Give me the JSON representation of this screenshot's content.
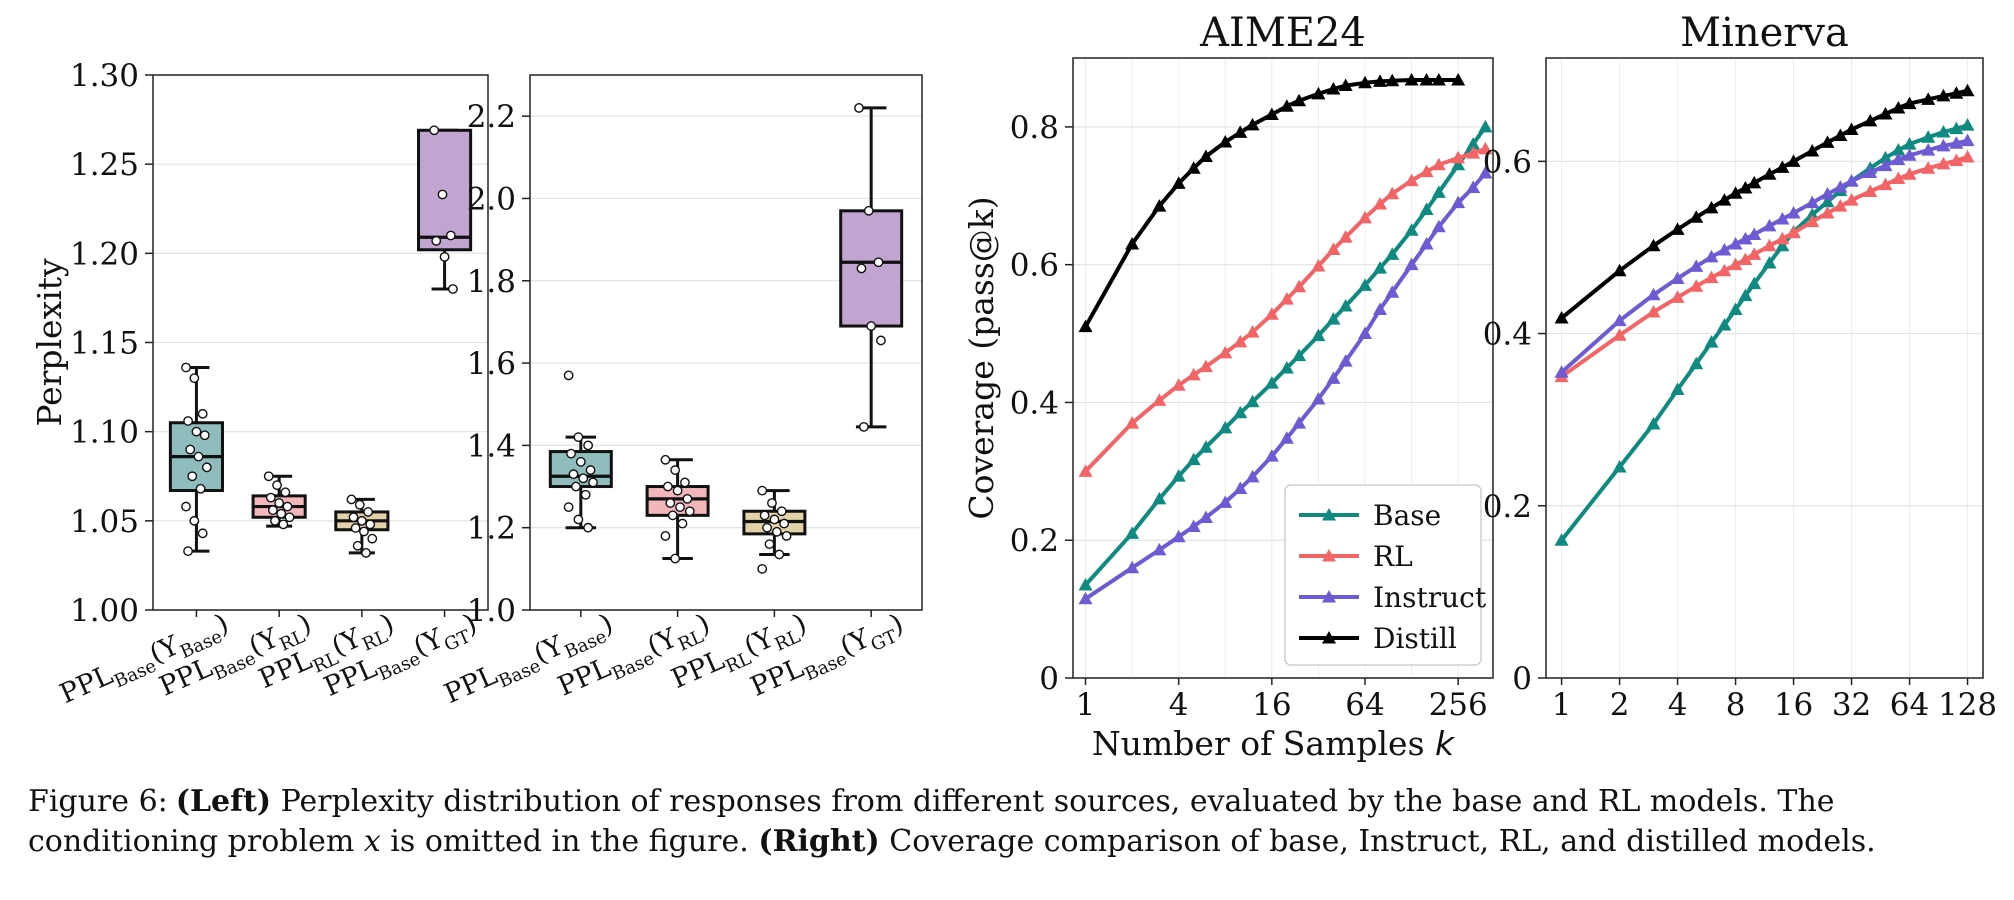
{
  "colors": {
    "base": "#0f8a80",
    "rl": "#f26466",
    "instruct": "#6e5bd3",
    "distill": "#000000",
    "box_base": "#8fbdbd",
    "box_rl": "#f3b7bb",
    "box_rl_rl": "#e3d1a7",
    "box_gt": "#c2a4d1"
  },
  "caption": {
    "label": "Figure 6:",
    "left_tag": "(Left)",
    "left_text": "Perplexity distribution of responses from different sources, evaluated by the base and RL models. The",
    "line2_a": "conditioning problem",
    "var_x": "x",
    "line2_b": "is omitted in the figure.",
    "right_tag": "(Right)",
    "right_text": "Coverage comparison of base, Instruct, RL, and distilled models."
  },
  "chart_data": [
    {
      "type": "box",
      "title": "",
      "xlabel": "",
      "ylabel": "Perplexity",
      "ylim": [
        1.0,
        1.3
      ],
      "yticks": [
        "1.00",
        "1.05",
        "1.10",
        "1.15",
        "1.20",
        "1.25",
        "1.30"
      ],
      "grid": true,
      "boxes": [
        {
          "label": {
            "main": "PPL",
            "sub": "Base",
            "arg": "Y",
            "argsub": "Base"
          },
          "color_key": "box_base",
          "q1": 1.067,
          "median": 1.086,
          "q3": 1.105,
          "whisker_low": 1.033,
          "whisker_high": 1.136,
          "points": [
            1.136,
            1.13,
            1.11,
            1.106,
            1.1,
            1.098,
            1.09,
            1.086,
            1.08,
            1.075,
            1.068,
            1.058,
            1.05,
            1.043,
            1.033
          ]
        },
        {
          "label": {
            "main": "PPL",
            "sub": "Base",
            "arg": "Y",
            "argsub": "RL"
          },
          "color_key": "box_rl",
          "q1": 1.052,
          "median": 1.058,
          "q3": 1.064,
          "whisker_low": 1.047,
          "whisker_high": 1.075,
          "points": [
            1.075,
            1.07,
            1.066,
            1.063,
            1.06,
            1.058,
            1.056,
            1.054,
            1.052,
            1.05,
            1.048
          ]
        },
        {
          "label": {
            "main": "PPL",
            "sub": "RL",
            "arg": "Y",
            "argsub": "RL"
          },
          "color_key": "box_rl_rl",
          "q1": 1.045,
          "median": 1.05,
          "q3": 1.055,
          "whisker_low": 1.032,
          "whisker_high": 1.062,
          "points": [
            1.062,
            1.059,
            1.055,
            1.052,
            1.05,
            1.048,
            1.046,
            1.044,
            1.04,
            1.036,
            1.032
          ]
        },
        {
          "label": {
            "main": "PPL",
            "sub": "Base",
            "arg": "Y",
            "argsub": "GT"
          },
          "color_key": "box_gt",
          "q1": 1.202,
          "median": 1.209,
          "q3": 1.269,
          "whisker_low": 1.18,
          "whisker_high": 1.269,
          "points": [
            1.269,
            1.233,
            1.21,
            1.207,
            1.198,
            1.18
          ]
        }
      ]
    },
    {
      "type": "box",
      "title": "",
      "xlabel": "",
      "ylabel": "",
      "ylim": [
        1.0,
        2.3
      ],
      "yticks": [
        "1.0",
        "1.2",
        "1.4",
        "1.6",
        "1.8",
        "2.0",
        "2.2"
      ],
      "grid": true,
      "boxes": [
        {
          "label": {
            "main": "PPL",
            "sub": "Base",
            "arg": "Y",
            "argsub": "Base"
          },
          "color_key": "box_base",
          "q1": 1.3,
          "median": 1.325,
          "q3": 1.385,
          "whisker_low": 1.2,
          "whisker_high": 1.42,
          "points": [
            1.57,
            1.42,
            1.4,
            1.38,
            1.36,
            1.34,
            1.33,
            1.32,
            1.31,
            1.3,
            1.28,
            1.25,
            1.22,
            1.2
          ]
        },
        {
          "label": {
            "main": "PPL",
            "sub": "Base",
            "arg": "Y",
            "argsub": "RL"
          },
          "color_key": "box_rl",
          "q1": 1.23,
          "median": 1.27,
          "q3": 1.3,
          "whisker_low": 1.125,
          "whisker_high": 1.365,
          "points": [
            1.365,
            1.34,
            1.31,
            1.3,
            1.29,
            1.27,
            1.26,
            1.25,
            1.24,
            1.23,
            1.21,
            1.18,
            1.125
          ]
        },
        {
          "label": {
            "main": "PPL",
            "sub": "RL",
            "arg": "Y",
            "argsub": "RL"
          },
          "color_key": "box_rl_rl",
          "q1": 1.185,
          "median": 1.215,
          "q3": 1.24,
          "whisker_low": 1.135,
          "whisker_high": 1.29,
          "points": [
            1.29,
            1.26,
            1.24,
            1.23,
            1.22,
            1.21,
            1.2,
            1.19,
            1.18,
            1.16,
            1.135,
            1.1
          ]
        },
        {
          "label": {
            "main": "PPL",
            "sub": "Base",
            "arg": "Y",
            "argsub": "GT"
          },
          "color_key": "box_gt",
          "q1": 1.69,
          "median": 1.845,
          "q3": 1.97,
          "whisker_low": 1.445,
          "whisker_high": 2.22,
          "points": [
            2.22,
            1.97,
            1.845,
            1.83,
            1.69,
            1.655,
            1.445
          ]
        }
      ]
    },
    {
      "type": "line",
      "title": "AIME24",
      "xlabel_text": "Number of Samples ",
      "xlabel_var": "k",
      "ylabel": "Coverage (pass@k)",
      "xscale": "log2",
      "xlim": [
        0.83,
        430
      ],
      "ylim": [
        0,
        0.9
      ],
      "xticks": [
        1,
        4,
        16,
        64,
        256
      ],
      "xtick_labels": [
        "1",
        "4",
        "16",
        "64",
        "256"
      ],
      "yticks": [
        0,
        0.2,
        0.4,
        0.6,
        0.8
      ],
      "ytick_labels": [
        "0",
        "0.2",
        "0.4",
        "0.6",
        "0.8"
      ],
      "grid": true,
      "legend": "lower-right",
      "series": [
        {
          "name": "Base",
          "color_key": "base",
          "x": [
            1,
            2,
            3,
            4,
            5,
            6,
            8,
            10,
            12,
            16,
            20,
            24,
            32,
            40,
            48,
            64,
            80,
            96,
            128,
            160,
            192,
            256,
            320,
            384
          ],
          "y": [
            0.135,
            0.21,
            0.26,
            0.293,
            0.317,
            0.335,
            0.363,
            0.385,
            0.401,
            0.428,
            0.45,
            0.468,
            0.497,
            0.521,
            0.54,
            0.57,
            0.595,
            0.615,
            0.65,
            0.68,
            0.705,
            0.745,
            0.775,
            0.8
          ]
        },
        {
          "name": "RL",
          "color_key": "rl",
          "x": [
            1,
            2,
            3,
            4,
            5,
            6,
            8,
            10,
            12,
            16,
            20,
            24,
            32,
            40,
            48,
            64,
            80,
            96,
            128,
            160,
            192,
            256,
            320,
            384
          ],
          "y": [
            0.3,
            0.37,
            0.403,
            0.425,
            0.44,
            0.452,
            0.472,
            0.488,
            0.502,
            0.528,
            0.55,
            0.568,
            0.598,
            0.622,
            0.64,
            0.668,
            0.688,
            0.703,
            0.722,
            0.735,
            0.745,
            0.755,
            0.762,
            0.768
          ]
        },
        {
          "name": "Instruct",
          "color_key": "instruct",
          "x": [
            1,
            2,
            3,
            4,
            5,
            6,
            8,
            10,
            12,
            16,
            20,
            24,
            32,
            40,
            48,
            64,
            80,
            96,
            128,
            160,
            192,
            256,
            320,
            384
          ],
          "y": [
            0.115,
            0.16,
            0.186,
            0.205,
            0.22,
            0.233,
            0.255,
            0.275,
            0.292,
            0.322,
            0.348,
            0.37,
            0.405,
            0.435,
            0.46,
            0.5,
            0.535,
            0.56,
            0.6,
            0.63,
            0.655,
            0.69,
            0.712,
            0.733
          ]
        },
        {
          "name": "Distill",
          "color_key": "distill",
          "x": [
            1,
            2,
            3,
            4,
            5,
            6,
            8,
            10,
            12,
            16,
            20,
            24,
            32,
            40,
            48,
            64,
            80,
            96,
            128,
            160,
            192,
            256
          ],
          "y": [
            0.51,
            0.63,
            0.685,
            0.718,
            0.74,
            0.757,
            0.778,
            0.792,
            0.803,
            0.818,
            0.83,
            0.838,
            0.848,
            0.855,
            0.86,
            0.864,
            0.866,
            0.867,
            0.868,
            0.868,
            0.868,
            0.868
          ]
        }
      ]
    },
    {
      "type": "line",
      "title": "Minerva",
      "xlabel_text": "",
      "xlabel_var": "",
      "ylabel": "",
      "xscale": "log2",
      "xlim": [
        0.83,
        154
      ],
      "ylim": [
        0,
        0.72
      ],
      "xticks": [
        1,
        2,
        4,
        8,
        16,
        32,
        64,
        128
      ],
      "xtick_labels": [
        "1",
        "2",
        "4",
        "8",
        "16",
        "32",
        "64",
        "128"
      ],
      "yticks": [
        0,
        0.2,
        0.4,
        0.6
      ],
      "ytick_labels": [
        "0",
        "0.2",
        "0.4",
        "0.6"
      ],
      "grid": true,
      "series": [
        {
          "name": "Base",
          "color_key": "base",
          "x": [
            1,
            2,
            3,
            4,
            5,
            6,
            7,
            8,
            9,
            10,
            12,
            14,
            16,
            20,
            24,
            28,
            32,
            40,
            48,
            56,
            64,
            80,
            96,
            112,
            128
          ],
          "y": [
            0.16,
            0.245,
            0.295,
            0.335,
            0.365,
            0.39,
            0.41,
            0.428,
            0.444,
            0.458,
            0.482,
            0.502,
            0.518,
            0.538,
            0.553,
            0.566,
            0.577,
            0.592,
            0.604,
            0.613,
            0.62,
            0.628,
            0.634,
            0.638,
            0.642
          ]
        },
        {
          "name": "RL",
          "color_key": "rl",
          "x": [
            1,
            2,
            3,
            4,
            5,
            6,
            7,
            8,
            9,
            10,
            12,
            14,
            16,
            20,
            24,
            28,
            32,
            40,
            48,
            56,
            64,
            80,
            96,
            112,
            128
          ],
          "y": [
            0.35,
            0.398,
            0.425,
            0.442,
            0.455,
            0.465,
            0.473,
            0.48,
            0.486,
            0.492,
            0.502,
            0.51,
            0.517,
            0.53,
            0.54,
            0.548,
            0.555,
            0.565,
            0.573,
            0.58,
            0.585,
            0.592,
            0.597,
            0.601,
            0.605
          ]
        },
        {
          "name": "Instruct",
          "color_key": "instruct",
          "x": [
            1,
            2,
            3,
            4,
            5,
            6,
            7,
            8,
            9,
            10,
            12,
            14,
            16,
            20,
            24,
            28,
            32,
            40,
            48,
            56,
            64,
            80,
            96,
            112,
            128
          ],
          "y": [
            0.355,
            0.415,
            0.445,
            0.464,
            0.478,
            0.489,
            0.497,
            0.504,
            0.51,
            0.515,
            0.525,
            0.533,
            0.54,
            0.552,
            0.562,
            0.57,
            0.577,
            0.587,
            0.595,
            0.602,
            0.607,
            0.613,
            0.618,
            0.621,
            0.624
          ]
        },
        {
          "name": "Distill",
          "color_key": "distill",
          "x": [
            1,
            2,
            3,
            4,
            5,
            6,
            7,
            8,
            9,
            10,
            12,
            14,
            16,
            20,
            24,
            28,
            32,
            40,
            48,
            56,
            64,
            80,
            96,
            112,
            128
          ],
          "y": [
            0.418,
            0.473,
            0.502,
            0.521,
            0.535,
            0.546,
            0.555,
            0.563,
            0.569,
            0.575,
            0.585,
            0.593,
            0.6,
            0.612,
            0.622,
            0.63,
            0.637,
            0.647,
            0.655,
            0.662,
            0.667,
            0.672,
            0.676,
            0.679,
            0.682
          ]
        }
      ]
    }
  ]
}
